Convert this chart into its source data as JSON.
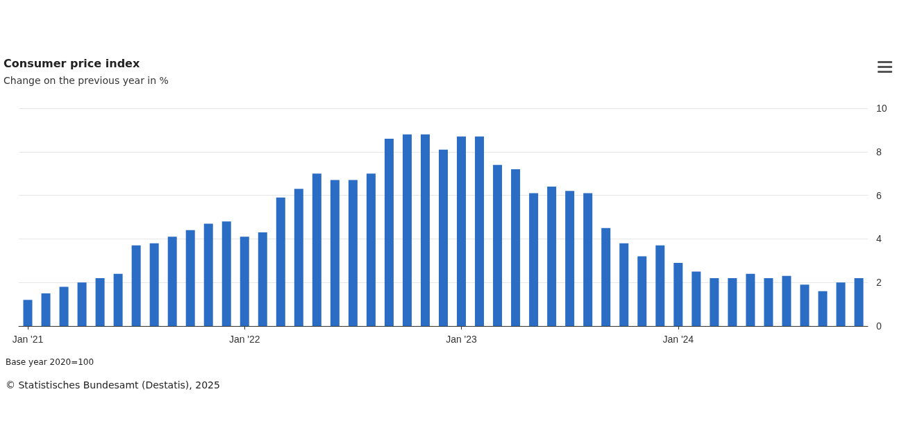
{
  "chart_data": {
    "type": "bar",
    "title": "Consumer price index",
    "subtitle": "Change on the previous year in %",
    "categories": [
      "Jan '21",
      null,
      null,
      null,
      null,
      null,
      null,
      null,
      null,
      null,
      null,
      null,
      "Jan '22",
      null,
      null,
      null,
      null,
      null,
      null,
      null,
      null,
      null,
      null,
      null,
      "Jan '23",
      null,
      null,
      null,
      null,
      null,
      null,
      null,
      null,
      null,
      null,
      null,
      "Jan '24",
      null,
      null,
      null,
      null,
      null,
      null,
      null,
      null,
      null,
      null
    ],
    "values": [
      1.2,
      1.5,
      1.8,
      2.0,
      2.2,
      2.4,
      3.7,
      3.8,
      4.1,
      4.4,
      4.7,
      4.8,
      4.1,
      4.3,
      5.9,
      6.3,
      7.0,
      6.7,
      6.7,
      7.0,
      8.6,
      8.8,
      8.8,
      8.1,
      8.7,
      8.7,
      7.4,
      7.2,
      6.1,
      6.4,
      6.2,
      6.1,
      4.5,
      3.8,
      3.2,
      3.7,
      2.9,
      2.5,
      2.2,
      2.2,
      2.4,
      2.2,
      2.3,
      1.9,
      1.6,
      2.0,
      2.2
    ],
    "color": "#2b6cc4",
    "ylim": [
      0,
      10
    ],
    "yticks": [
      0,
      2,
      4,
      6,
      8,
      10
    ],
    "grid": "y",
    "annotations": [
      "Base year 2020=100",
      "© Statistisches Bundesamt (Destatis), 2025"
    ]
  }
}
